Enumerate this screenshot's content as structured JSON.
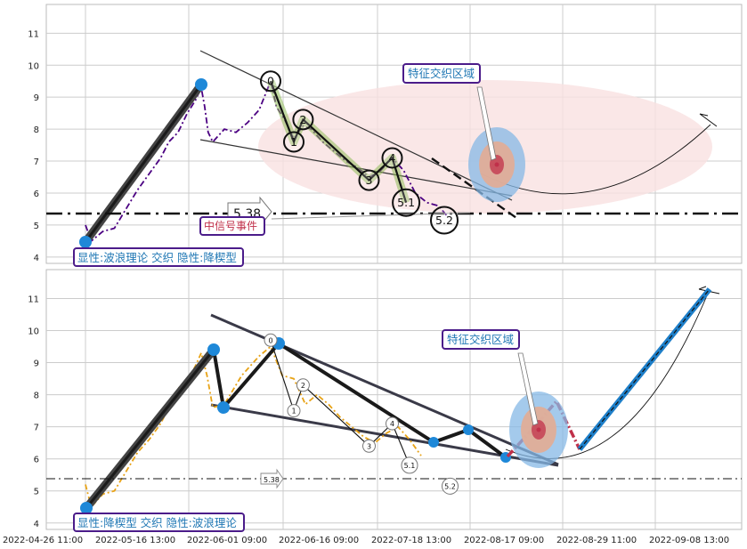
{
  "chart_data": [
    {
      "type": "line",
      "panel": "top",
      "ylim": [
        3.8,
        11.9
      ],
      "yticks": [
        "4",
        "5",
        "6",
        "7",
        "8",
        "9",
        "10",
        "11"
      ],
      "grid": true,
      "hline": {
        "y": 5.38,
        "label": "5.38",
        "style": "dash-dot"
      },
      "series": [
        {
          "values": [
            [
              0,
              5.0
            ],
            [
              0.05,
              4.5
            ],
            [
              0.15,
              4.8
            ],
            [
              0.25,
              4.9
            ],
            [
              0.35,
              5.5
            ],
            [
              0.45,
              6.1
            ],
            [
              0.55,
              6.6
            ],
            [
              0.65,
              7.1
            ],
            [
              0.72,
              7.6
            ],
            [
              0.8,
              7.9
            ],
            [
              0.88,
              8.5
            ],
            [
              0.95,
              8.9
            ],
            [
              1.0,
              9.3
            ],
            [
              1.03,
              8.7
            ],
            [
              1.06,
              7.9
            ],
            [
              1.1,
              7.6
            ],
            [
              1.2,
              8.0
            ],
            [
              1.3,
              7.9
            ],
            [
              1.4,
              8.2
            ],
            [
              1.5,
              8.6
            ],
            [
              1.6,
              9.5
            ],
            [
              1.65,
              8.7
            ],
            [
              1.72,
              8.3
            ],
            [
              1.8,
              7.7
            ],
            [
              1.88,
              8.1
            ],
            [
              1.95,
              8.0
            ],
            [
              2.05,
              7.6
            ],
            [
              2.15,
              7.3
            ],
            [
              2.25,
              7.0
            ],
            [
              2.35,
              6.8
            ],
            [
              2.45,
              6.5
            ],
            [
              2.55,
              6.7
            ],
            [
              2.65,
              7.1
            ],
            [
              2.75,
              6.7
            ],
            [
              2.85,
              6.0
            ],
            [
              2.95,
              5.7
            ],
            [
              3.05,
              5.6
            ],
            [
              3.12,
              5.3
            ]
          ]
        }
      ],
      "wave_points": [
        {
          "label": "0",
          "x": 1.6,
          "y": 9.5
        },
        {
          "label": "1",
          "x": 1.8,
          "y": 7.6
        },
        {
          "label": "2",
          "x": 1.88,
          "y": 8.3
        },
        {
          "label": "3",
          "x": 2.45,
          "y": 6.4
        },
        {
          "label": "4",
          "x": 2.65,
          "y": 7.1
        },
        {
          "label": "5.1",
          "x": 2.77,
          "y": 5.7
        },
        {
          "label": "5.2",
          "x": 3.1,
          "y": 5.15
        }
      ],
      "annotations": [
        {
          "text": "特征交织区域"
        },
        {
          "text": "中信号事件"
        },
        {
          "text": "显性:波浪理论 交织 隐性:降楔型"
        }
      ]
    },
    {
      "type": "line",
      "panel": "bottom",
      "ylim": [
        3.8,
        11.9
      ],
      "yticks": [
        "4",
        "5",
        "6",
        "7",
        "8",
        "9",
        "10",
        "11"
      ],
      "xticks": [
        "2022-04-26 11:00",
        "2022-05-16 13:00",
        "2022-06-01 09:00",
        "2022-06-16 09:00",
        "2022-07-18 13:00",
        "2022-08-17 09:00",
        "2022-08-29 11:00",
        "2022-09-08 13:00"
      ],
      "grid": true,
      "hline": {
        "y": 5.38,
        "label": "5.38",
        "style": "dash-dot"
      },
      "series": [
        {
          "values": [
            [
              0,
              5.2
            ],
            [
              0.05,
              4.5
            ],
            [
              0.15,
              4.9
            ],
            [
              0.25,
              5.0
            ],
            [
              0.35,
              5.6
            ],
            [
              0.45,
              6.2
            ],
            [
              0.55,
              6.6
            ],
            [
              0.65,
              7.1
            ],
            [
              0.72,
              7.6
            ],
            [
              0.8,
              8.2
            ],
            [
              0.88,
              8.4
            ],
            [
              0.95,
              8.9
            ],
            [
              1.0,
              9.3
            ],
            [
              1.05,
              8.6
            ],
            [
              1.1,
              7.6
            ],
            [
              1.2,
              7.7
            ],
            [
              1.35,
              8.6
            ],
            [
              1.5,
              9.2
            ],
            [
              1.6,
              9.5
            ],
            [
              1.7,
              8.6
            ],
            [
              1.8,
              8.5
            ],
            [
              1.9,
              7.7
            ],
            [
              2.0,
              8.0
            ],
            [
              2.1,
              7.7
            ],
            [
              2.2,
              7.3
            ],
            [
              2.3,
              7.0
            ],
            [
              2.4,
              6.7
            ],
            [
              2.5,
              6.5
            ],
            [
              2.6,
              6.8
            ],
            [
              2.7,
              7.0
            ],
            [
              2.8,
              6.6
            ],
            [
              2.9,
              6.1
            ]
          ]
        }
      ],
      "wave_points": [
        {
          "label": "0",
          "x": 1.6,
          "y": 9.7
        },
        {
          "label": "1",
          "x": 1.8,
          "y": 7.5
        },
        {
          "label": "2",
          "x": 1.88,
          "y": 8.3
        },
        {
          "label": "3",
          "x": 2.45,
          "y": 6.4
        },
        {
          "label": "4",
          "x": 2.65,
          "y": 7.1
        },
        {
          "label": "5.1",
          "x": 2.8,
          "y": 5.8
        },
        {
          "label": "5.2",
          "x": 3.15,
          "y": 5.15
        }
      ],
      "annotations": [
        {
          "text": "特征交织区域"
        },
        {
          "text": "显性:降楔型 交织 隐性:波浪理论"
        }
      ]
    }
  ],
  "colors": {
    "grid": "#cccccc",
    "top_price": "#4b0082",
    "bottom_price": "#e8a317",
    "wave_fill": "#8fbc5a",
    "ellipse_bg": "#f4cccc",
    "box_border": "#4b1c8a",
    "box_text": "#1f77b4",
    "dot_blue": "#1e88d8",
    "projection_blue": "#1e7fc9",
    "projection_red": "#c0304a"
  }
}
